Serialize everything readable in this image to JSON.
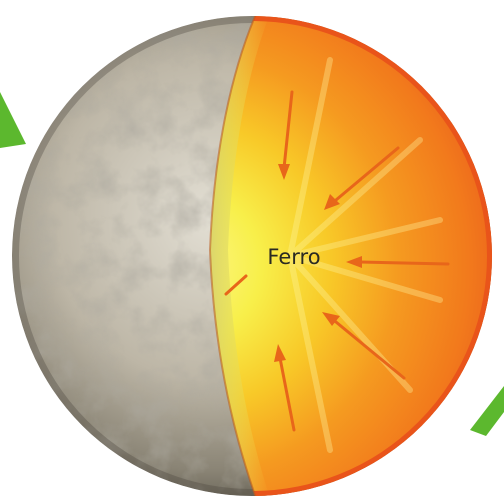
{
  "labels": {
    "core": "Ferro"
  },
  "colors": {
    "background": "#ffffff",
    "arrow_green": "#5cb82e",
    "surface_light": "#d9d4c8",
    "surface_dark": "#7a7466",
    "core_center": "#fbf36a",
    "core_mid": "#f7c21e",
    "mantle_orange": "#f47a1c",
    "mantle_edge": "#e95a12",
    "inner_arrow": "#e8661a"
  },
  "icons": {
    "left_arrow": "green-arrow-tip-icon",
    "right_arrow": "green-arrow-tail-icon"
  }
}
